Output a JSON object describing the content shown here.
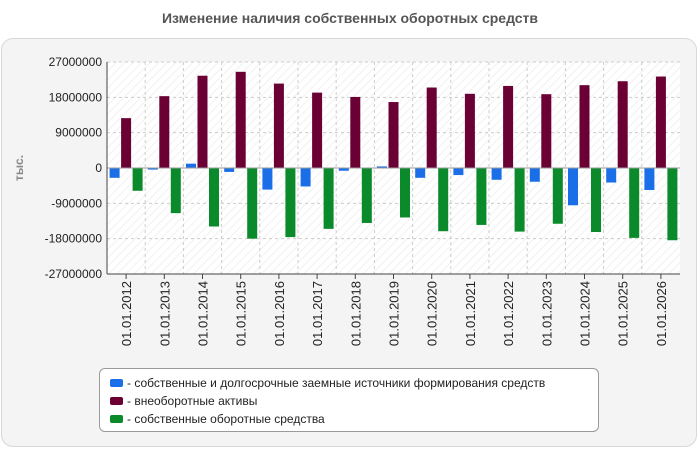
{
  "chart_data": {
    "type": "bar",
    "title": "Изменение наличия собственных оборотных средств",
    "ylabel": "тыс.",
    "xlabel": "",
    "ylim": [
      -27000000,
      27000000
    ],
    "yticks": [
      27000000,
      18000000,
      9000000,
      0,
      -9000000,
      -18000000,
      -27000000
    ],
    "ytick_labels": [
      "27000000",
      "18000000",
      "9000000",
      "0",
      "-9000000",
      "-18000000",
      "-27000000"
    ],
    "grid": true,
    "legend_position": "bottom",
    "categories": [
      "01.01.2012",
      "01.01.2013",
      "01.01.2014",
      "01.01.2015",
      "01.01.2016",
      "01.01.2017",
      "01.01.2018",
      "01.01.2019",
      "01.01.2020",
      "01.01.2021",
      "01.01.2022",
      "01.01.2023",
      "01.01.2024",
      "01.01.2025",
      "01.01.2026"
    ],
    "series": [
      {
        "name": "- собственные и долгосрочные заемные источники формирования средств",
        "color": "#1a6fe8",
        "values": [
          -2500000,
          -400000,
          1100000,
          -1000000,
          -5500000,
          -4700000,
          -700000,
          400000,
          -2500000,
          -1800000,
          -3000000,
          -3500000,
          -9500000,
          -3700000,
          -5600000
        ]
      },
      {
        "name": "- внеоборотные активы",
        "color": "#6a0033",
        "values": [
          12700000,
          18300000,
          23500000,
          24500000,
          21500000,
          19200000,
          18100000,
          16800000,
          20500000,
          18900000,
          20900000,
          18800000,
          21100000,
          22100000,
          23300000
        ]
      },
      {
        "name": "- собственные оборотные средства",
        "color": "#0a8a2a",
        "values": [
          -5800000,
          -11500000,
          -14900000,
          -18000000,
          -17600000,
          -15500000,
          -14000000,
          -12600000,
          -16100000,
          -14500000,
          -16200000,
          -14200000,
          -16300000,
          -17800000,
          -18400000
        ]
      }
    ]
  }
}
